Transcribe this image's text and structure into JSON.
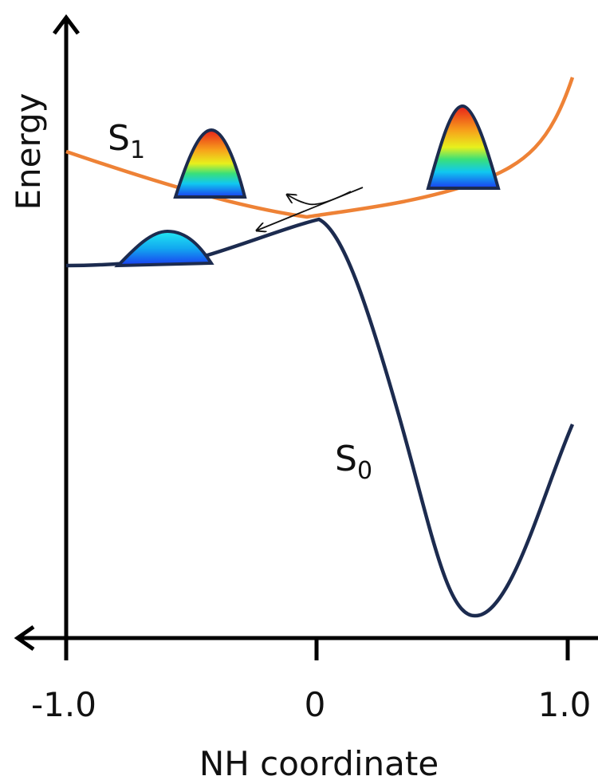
{
  "axes": {
    "x_label": "NH coordinate",
    "y_label": "Energy",
    "x_ticks": [
      "-1.0",
      "0",
      "1.0"
    ]
  },
  "curves": [
    {
      "label": "S",
      "subscript": "1"
    },
    {
      "label": "S",
      "subscript": "0"
    }
  ]
}
